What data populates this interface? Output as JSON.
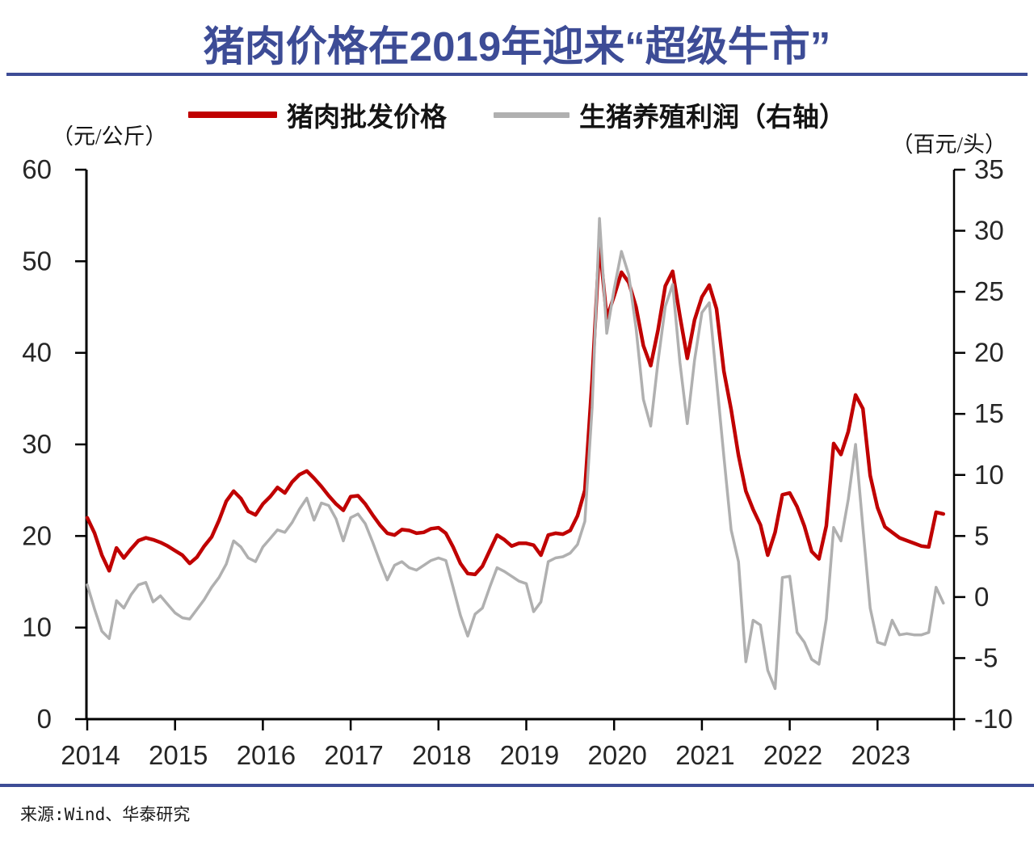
{
  "title": "猪肉价格在2019年迎来“超级牛市”",
  "legend": [
    {
      "label": "猪肉批发价格",
      "color": "#C00000"
    },
    {
      "label": "生猪养殖利润（右轴）",
      "color": "#B0B0B0"
    }
  ],
  "axes": {
    "left_unit": "（元/公斤）",
    "right_unit": "（百元/头）"
  },
  "source": "来源:Wind、华泰研究",
  "accent_color": "#3D4C96",
  "chart_data": {
    "type": "line",
    "title": "猪肉价格在2019年迎来“超级牛市”",
    "x_start_year": 2014,
    "x_step_months": 1,
    "x_tick_labels": [
      "2014",
      "2015",
      "2016",
      "2017",
      "2018",
      "2019",
      "2020",
      "2021",
      "2022",
      "2023"
    ],
    "grid": false,
    "legend_position": "top-center",
    "left_axis": {
      "unit": "（元/公斤）",
      "min": 0,
      "max": 60,
      "ticks": [
        0,
        10,
        20,
        30,
        40,
        50,
        60
      ]
    },
    "right_axis": {
      "unit": "（百元/头）",
      "min": -10,
      "max": 35,
      "ticks": [
        -10,
        -5,
        0,
        5,
        10,
        15,
        20,
        25,
        30,
        35
      ]
    },
    "series": [
      {
        "name": "猪肉批发价格",
        "axis": "left",
        "color": "#C00000",
        "width": 4.5,
        "values": [
          22.0,
          20.3,
          17.9,
          16.2,
          18.7,
          17.6,
          18.6,
          19.5,
          19.8,
          19.6,
          19.3,
          18.9,
          18.4,
          17.9,
          17.0,
          17.7,
          18.9,
          19.9,
          21.7,
          23.8,
          24.9,
          24.1,
          22.7,
          22.3,
          23.5,
          24.3,
          25.3,
          24.7,
          25.9,
          26.7,
          27.1,
          26.3,
          25.4,
          24.4,
          23.5,
          22.8,
          24.3,
          24.4,
          23.5,
          22.3,
          21.2,
          20.3,
          20.1,
          20.7,
          20.6,
          20.3,
          20.4,
          20.8,
          20.9,
          20.3,
          18.8,
          17.0,
          15.9,
          15.8,
          16.7,
          18.4,
          20.1,
          19.6,
          18.9,
          19.2,
          19.2,
          19.0,
          17.9,
          20.1,
          20.3,
          20.2,
          20.6,
          22.2,
          25.0,
          37.0,
          52.0,
          43.8,
          46.2,
          48.8,
          47.7,
          45.0,
          40.8,
          38.6,
          42.5,
          47.3,
          48.9,
          44.0,
          39.4,
          43.6,
          46.1,
          47.4,
          44.8,
          38.0,
          33.8,
          28.8,
          24.9,
          22.9,
          21.2,
          17.9,
          20.4,
          24.5,
          24.7,
          23.2,
          21.1,
          18.3,
          17.5,
          21.1,
          30.1,
          28.9,
          31.4,
          35.4,
          33.9,
          26.6,
          23.1,
          21.0,
          20.4,
          19.8,
          19.5,
          19.2,
          18.9,
          18.8,
          22.6,
          22.4
        ]
      },
      {
        "name": "生猪养殖利润（右轴）",
        "axis": "right",
        "color": "#B0B0B0",
        "width": 3.5,
        "values": [
          1.0,
          -1.0,
          -2.8,
          -3.4,
          -0.3,
          -0.9,
          0.2,
          1.0,
          1.2,
          -0.4,
          0.1,
          -0.6,
          -1.3,
          -1.7,
          -1.8,
          -1.0,
          -0.2,
          0.8,
          1.6,
          2.7,
          4.6,
          4.1,
          3.2,
          2.9,
          4.1,
          4.8,
          5.5,
          5.3,
          6.1,
          7.2,
          8.1,
          6.3,
          7.7,
          7.5,
          6.4,
          4.6,
          6.5,
          6.8,
          6.0,
          4.5,
          2.9,
          1.4,
          2.6,
          2.9,
          2.4,
          2.2,
          2.6,
          3.0,
          3.2,
          3.0,
          0.8,
          -1.5,
          -3.2,
          -1.4,
          -0.9,
          0.8,
          2.4,
          2.1,
          1.7,
          1.3,
          1.1,
          -1.2,
          -0.4,
          2.9,
          3.2,
          3.3,
          3.6,
          4.3,
          6.2,
          15.5,
          31.0,
          21.6,
          25.2,
          28.3,
          26.4,
          22.0,
          16.2,
          14.0,
          19.3,
          23.8,
          25.6,
          19.2,
          14.2,
          19.4,
          23.3,
          24.1,
          17.8,
          11.5,
          5.5,
          2.9,
          -5.3,
          -1.9,
          -2.3,
          -6.0,
          -7.5,
          1.6,
          1.7,
          -2.9,
          -3.7,
          -5.1,
          -5.5,
          -1.8,
          5.7,
          4.6,
          8.0,
          12.5,
          5.7,
          -0.9,
          -3.7,
          -3.9,
          -1.9,
          -3.1,
          -3.0,
          -3.1,
          -3.1,
          -2.9,
          0.8,
          -0.5
        ]
      }
    ]
  }
}
